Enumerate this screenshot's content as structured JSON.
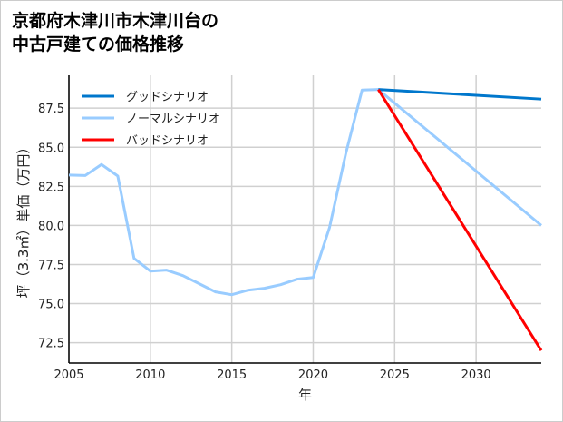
{
  "title_lines": [
    "京都府木津川市木津川台の",
    "中古戸建ての価格推移"
  ],
  "chart_data": {
    "type": "line",
    "title": "京都府木津川市木津川台の中古戸建ての価格推移",
    "xlabel": "年",
    "ylabel": "坪（3.3㎡）単価（万円）",
    "xlim": [
      2005,
      2034
    ],
    "ylim": [
      71.2,
      89.6
    ],
    "xticks": [
      2005,
      2010,
      2015,
      2020,
      2025,
      2030
    ],
    "yticks": [
      72.5,
      75.0,
      77.5,
      80.0,
      82.5,
      85.0,
      87.5
    ],
    "grid": true,
    "legend_position": "top-left",
    "series": [
      {
        "name": "グッドシナリオ",
        "color": "#0077cc",
        "x": [
          2024,
          2034
        ],
        "y": [
          88.69,
          88.08
        ]
      },
      {
        "name": "ノーマルシナリオ",
        "color": "#99ccff",
        "x": [
          2005,
          2006,
          2007,
          2008,
          2009,
          2010,
          2011,
          2012,
          2013,
          2014,
          2015,
          2016,
          2017,
          2018,
          2019,
          2020,
          2021,
          2022,
          2023,
          2024,
          2034
        ],
        "y": [
          83.22,
          83.19,
          83.9,
          83.16,
          77.89,
          77.08,
          77.14,
          76.79,
          76.27,
          75.75,
          75.57,
          75.86,
          75.98,
          76.21,
          76.56,
          76.67,
          79.86,
          84.6,
          88.66,
          88.69,
          80.0
        ]
      },
      {
        "name": "バッドシナリオ",
        "color": "#ff0000",
        "x": [
          2024,
          2034
        ],
        "y": [
          88.69,
          72.0
        ]
      }
    ]
  }
}
